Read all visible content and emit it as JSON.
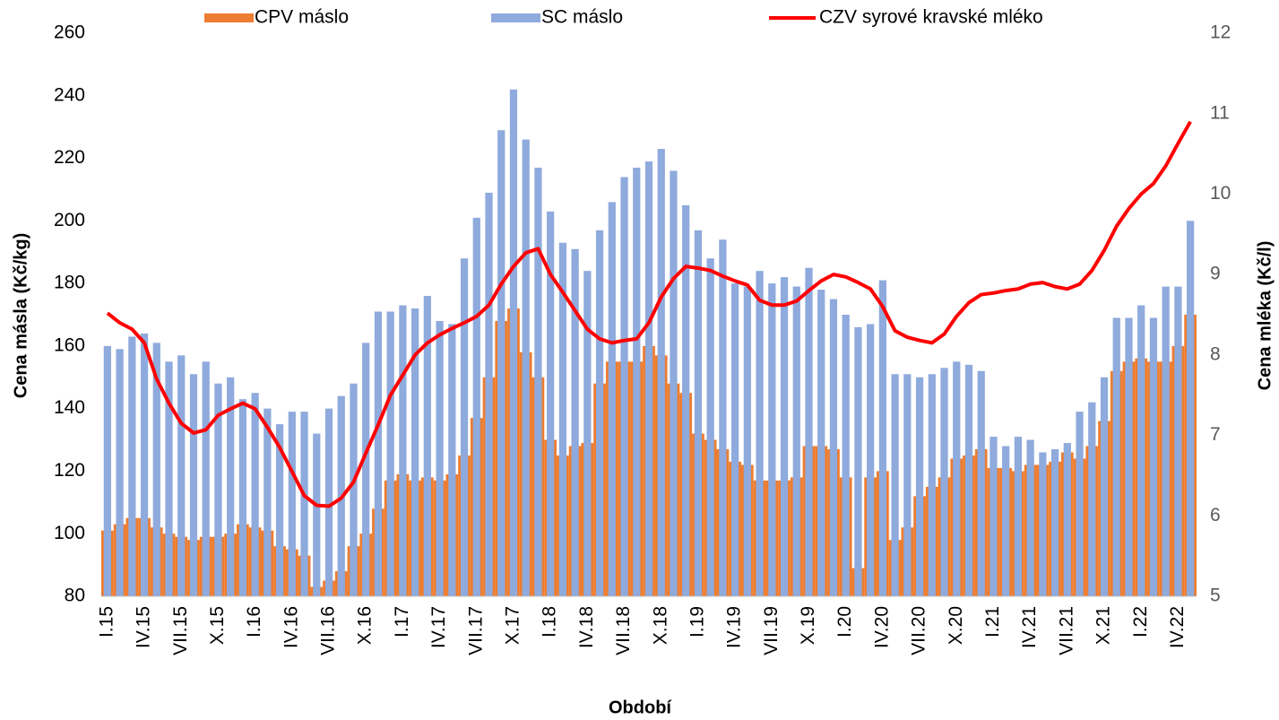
{
  "chart_data": {
    "type": "bar",
    "x_label": "Období",
    "y_label": "Cena másla (Kč/kg)",
    "y2_label": "Cena mléka (Kč/l)",
    "categories": [
      "I.15",
      null,
      null,
      "IV.15",
      null,
      null,
      "VII.15",
      null,
      null,
      "X.15",
      null,
      null,
      "I.16",
      null,
      null,
      "IV.16",
      null,
      null,
      "VII.16",
      null,
      null,
      "X.16",
      null,
      null,
      "I.17",
      null,
      null,
      "IV.17",
      null,
      null,
      "VII.17",
      null,
      null,
      "X.17",
      null,
      null,
      "I.18",
      null,
      null,
      "IV.18",
      null,
      null,
      "VII.18",
      null,
      null,
      "X.18",
      null,
      null,
      "I.19",
      null,
      null,
      "IV.19",
      null,
      null,
      "VII.19",
      null,
      null,
      "X.19",
      null,
      null,
      "I.20",
      null,
      null,
      "IV.20",
      null,
      null,
      "VII.20",
      null,
      null,
      "X.20",
      null,
      null,
      "I.21",
      null,
      null,
      "IV.21",
      null,
      null,
      "VII.21",
      null,
      null,
      "X.21",
      null,
      null,
      "I.22",
      null,
      null,
      "IV.22",
      null
    ],
    "series": [
      {
        "name": "CPV máslo",
        "color": "#ed7d31",
        "type": "bar",
        "values": [
          101,
          103,
          105,
          105,
          102,
          100,
          99,
          98,
          99,
          99,
          100,
          103,
          102,
          101,
          96,
          95,
          93,
          83,
          85,
          88,
          96,
          100,
          108,
          117,
          119,
          117,
          118,
          117,
          119,
          125,
          137,
          150,
          168,
          172,
          158,
          150,
          130,
          125,
          128,
          129,
          148,
          155,
          155,
          155,
          160,
          157,
          148,
          145,
          132,
          130,
          127,
          123,
          122,
          117,
          117,
          117,
          118,
          128,
          128,
          127,
          118,
          89,
          118,
          120,
          98,
          102,
          112,
          115,
          118,
          124,
          125,
          127,
          121,
          121,
          120,
          122,
          122,
          123,
          126,
          124,
          128,
          136,
          152,
          155,
          156,
          155,
          155,
          160,
          170
        ]
      },
      {
        "name": "SC máslo",
        "color": "#8faadc",
        "type": "bar",
        "values": [
          160,
          159,
          163,
          164,
          161,
          155,
          157,
          151,
          155,
          148,
          150,
          143,
          145,
          140,
          135,
          139,
          139,
          132,
          140,
          144,
          148,
          161,
          171,
          171,
          173,
          172,
          176,
          168,
          167,
          188,
          201,
          209,
          229,
          242,
          226,
          217,
          203,
          193,
          191,
          184,
          197,
          206,
          214,
          217,
          219,
          223,
          216,
          205,
          197,
          188,
          194,
          180,
          179,
          184,
          180,
          182,
          179,
          185,
          178,
          175,
          170,
          166,
          167,
          181,
          151,
          151,
          150,
          151,
          153,
          155,
          154,
          152,
          131,
          128,
          131,
          130,
          126,
          127,
          129,
          139,
          142,
          150,
          169,
          169,
          173,
          169,
          179,
          179,
          200
        ]
      },
      {
        "name": "CZV syrové kravské mléko",
        "color": "#ff0000",
        "type": "line",
        "axis": "y2",
        "values": [
          8.52,
          8.4,
          8.32,
          8.15,
          7.7,
          7.4,
          7.15,
          7.03,
          7.07,
          7.25,
          7.33,
          7.4,
          7.33,
          7.1,
          6.85,
          6.55,
          6.25,
          6.13,
          6.12,
          6.22,
          6.42,
          6.78,
          7.13,
          7.5,
          7.75,
          8.0,
          8.15,
          8.25,
          8.33,
          8.4,
          8.48,
          8.62,
          8.88,
          9.1,
          9.27,
          9.32,
          9.0,
          8.78,
          8.55,
          8.32,
          8.2,
          8.15,
          8.18,
          8.2,
          8.4,
          8.72,
          8.95,
          9.1,
          9.08,
          9.05,
          8.98,
          8.92,
          8.87,
          8.68,
          8.62,
          8.62,
          8.67,
          8.8,
          8.92,
          9.0,
          8.97,
          8.9,
          8.82,
          8.6,
          8.3,
          8.22,
          8.18,
          8.15,
          8.26,
          8.48,
          8.65,
          8.75,
          8.77,
          8.8,
          8.82,
          8.88,
          8.9,
          8.85,
          8.82,
          8.88,
          9.05,
          9.3,
          9.6,
          9.82,
          10.0,
          10.13,
          10.35,
          10.63,
          10.9
        ]
      }
    ],
    "ylim": [
      80,
      260
    ],
    "yticks": [
      80,
      100,
      120,
      140,
      160,
      180,
      200,
      220,
      240,
      260
    ],
    "y2lim": [
      5,
      12
    ],
    "y2ticks": [
      5,
      6,
      7,
      8,
      9,
      10,
      11,
      12
    ],
    "legend": "top"
  }
}
